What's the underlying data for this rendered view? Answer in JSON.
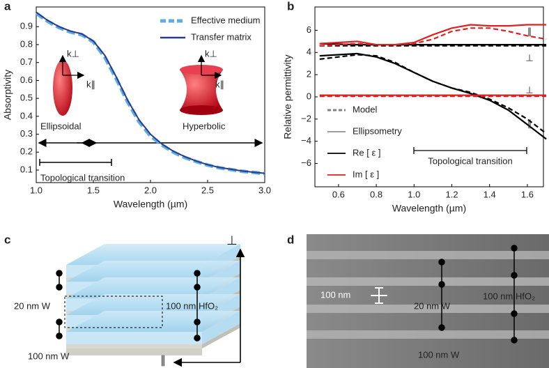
{
  "panel_labels": [
    "a",
    "b",
    "c",
    "d"
  ],
  "chart_data": [
    {
      "type": "line",
      "xlabel": "Wavelength (µm)",
      "ylabel": "Absorptivity",
      "x": [
        1.0,
        1.1,
        1.2,
        1.3,
        1.4,
        1.5,
        1.6,
        1.7,
        1.8,
        1.9,
        2.0,
        2.1,
        2.2,
        2.3,
        2.4,
        2.5,
        2.6,
        2.7,
        2.8,
        2.9,
        3.0
      ],
      "series": [
        {
          "name": "Effective medium",
          "color": "#5aaee0",
          "linestyle": "dashed",
          "values": [
            0.975,
            0.93,
            0.895,
            0.87,
            0.855,
            0.815,
            0.73,
            0.61,
            0.48,
            0.37,
            0.29,
            0.24,
            0.2,
            0.17,
            0.148,
            0.128,
            0.113,
            0.103,
            0.093,
            0.087,
            0.08
          ]
        },
        {
          "name": "Transfer matrix",
          "color": "#2b3990",
          "linestyle": "solid",
          "values": [
            0.98,
            0.935,
            0.9,
            0.875,
            0.86,
            0.82,
            0.74,
            0.62,
            0.49,
            0.38,
            0.3,
            0.245,
            0.205,
            0.175,
            0.15,
            0.13,
            0.115,
            0.105,
            0.095,
            0.088,
            0.082
          ]
        }
      ],
      "xlim": [
        1.0,
        3.0
      ],
      "xticks": [
        {
          "value": 1,
          "label": "1.0"
        },
        1.5,
        {
          "value": 2,
          "label": "2.0"
        },
        2.5,
        {
          "value": 3,
          "label": "3.0"
        }
      ],
      "ylim": [
        0.03,
        1.01
      ],
      "yticks": [
        0.1,
        0.2,
        0.3,
        0.4,
        0.5,
        0.6,
        0.7,
        0.8,
        0.9
      ],
      "legend": "upper right",
      "annotations": [
        "k⊥",
        "k∥",
        "Ellipsoidal",
        "k⊥",
        "k∥",
        "Hyperbolic",
        "Topological transition"
      ]
    },
    {
      "type": "line",
      "xlabel": "Wavelength (µm)",
      "ylabel": "Relative permittivity",
      "x": [
        0.5,
        0.6,
        0.7,
        0.8,
        0.9,
        1.0,
        1.1,
        1.2,
        1.3,
        1.4,
        1.5,
        1.6,
        1.7
      ],
      "series": [
        {
          "color": "#000000",
          "linestyle": "solid",
          "values": [
            4.8,
            4.75,
            4.7,
            4.7,
            4.7,
            4.7,
            4.7,
            4.7,
            4.7,
            4.7,
            4.7,
            4.7,
            4.7
          ]
        },
        {
          "color": "#000000",
          "linestyle": "dashed",
          "values": [
            4.6,
            4.6,
            4.6,
            4.6,
            4.6,
            4.6,
            4.6,
            4.6,
            4.6,
            4.6,
            4.6,
            4.6,
            4.6
          ]
        },
        {
          "color": "#000000",
          "linestyle": "solid",
          "values": [
            3.7,
            3.8,
            3.9,
            3.6,
            3.0,
            2.2,
            1.4,
            0.8,
            0.3,
            -0.3,
            -1.2,
            -2.5,
            -3.8
          ]
        },
        {
          "color": "#000000",
          "linestyle": "dashed",
          "values": [
            3.4,
            3.6,
            3.8,
            3.7,
            3.1,
            2.2,
            1.4,
            0.8,
            0.4,
            -0.2,
            -1.0,
            -2.0,
            -3.3
          ]
        },
        {
          "color": "#e02020",
          "linestyle": "solid",
          "values": [
            4.8,
            4.9,
            5.0,
            4.7,
            4.7,
            4.9,
            5.6,
            6.2,
            6.5,
            6.4,
            6.4,
            6.5,
            6.5
          ]
        },
        {
          "color": "#e02020",
          "linestyle": "dashed",
          "values": [
            4.6,
            4.7,
            4.8,
            4.7,
            4.7,
            4.8,
            5.2,
            5.9,
            6.2,
            6.2,
            5.9,
            5.5,
            5.2
          ]
        },
        {
          "color": "#e02020",
          "linestyle": "solid",
          "values": [
            0.15,
            0.15,
            0.15,
            0.15,
            0.15,
            0.15,
            0.15,
            0.15,
            0.15,
            0.15,
            0.15,
            0.15,
            0.15
          ]
        },
        {
          "color": "#e02020",
          "linestyle": "dashed",
          "values": [
            0.05,
            0.05,
            0.05,
            0.05,
            0.05,
            0.05,
            0.05,
            0.05,
            0.05,
            0.05,
            0.05,
            0.05,
            0.05
          ]
        }
      ],
      "xlim": [
        0.475,
        1.685
      ],
      "xticks": [
        0.6,
        0.8,
        {
          "value": 1,
          "label": "1.0"
        },
        1.2,
        1.4,
        1.6
      ],
      "ylim": [
        -8.1,
        8.1
      ],
      "yticks": [
        {
          "value": -6,
          "label": "−6"
        },
        {
          "value": -4,
          "label": "−4"
        },
        {
          "value": -2,
          "label": "−2"
        },
        0,
        2,
        4,
        6
      ],
      "legend": "lower left",
      "legend_entries": [
        {
          "label": "Model",
          "color": "#808080",
          "linestyle": "dashed"
        },
        {
          "label": "Ellipsometry",
          "color": "#909090",
          "linestyle": "solid"
        },
        {
          "label": "Re [ ε ]",
          "color": "#000000",
          "linestyle": "solid"
        },
        {
          "label": "Im [ ε ]",
          "color": "#e02020",
          "linestyle": "solid"
        }
      ],
      "annotations": [
        "∥",
        "⊥",
        "⊥",
        "∥",
        "Topological transition"
      ]
    }
  ],
  "diagram": {
    "labels": [
      "20 nm W",
      "100 nm HfO₂",
      "100 nm W",
      "⊥",
      "∥"
    ]
  },
  "micrograph": {
    "labels": [
      "100 nm",
      "20 nm W",
      "100 nm HfO₂",
      "100 nm W"
    ]
  }
}
